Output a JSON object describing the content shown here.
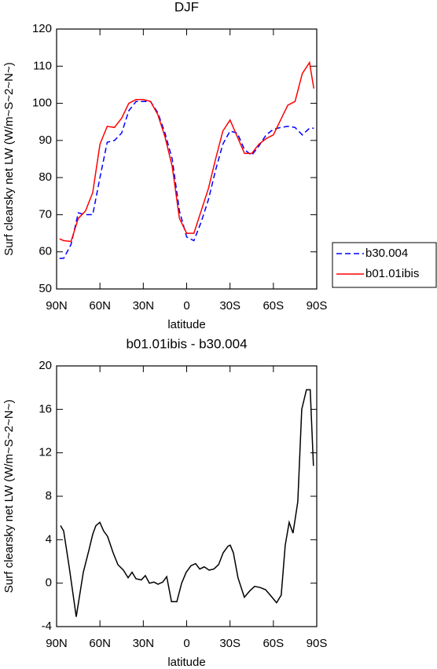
{
  "chart_data": [
    {
      "type": "line",
      "title": "DJF",
      "xlabel": "latitude",
      "ylabel": "Surf clearsky net LW (W/m~S~2~N~)",
      "x": [
        88,
        85,
        80,
        75,
        70,
        65,
        60,
        55,
        50,
        45,
        40,
        35,
        30,
        25,
        20,
        15,
        10,
        5,
        0,
        -5,
        -10,
        -15,
        -20,
        -25,
        -30,
        -35,
        -40,
        -45,
        -50,
        -55,
        -60,
        -65,
        -70,
        -75,
        -80,
        -85,
        -88
      ],
      "series": [
        {
          "name": "b30.004",
          "color": "#0000ff",
          "dash": "dashed",
          "values": [
            58.2,
            58.3,
            62,
            70.5,
            70,
            70,
            80,
            89.5,
            90,
            92,
            98,
            100.5,
            100.5,
            100.5,
            97.5,
            92,
            85,
            71,
            64,
            63,
            68,
            74,
            82,
            89,
            92.5,
            92,
            87.5,
            86,
            88.5,
            91.5,
            93,
            93.5,
            93.8,
            93.5,
            91.5,
            93.3,
            93.3
          ]
        },
        {
          "name": "b01.01ibis",
          "color": "#ff0000",
          "dash": "solid",
          "values": [
            63.5,
            63,
            62.8,
            69,
            71,
            76,
            89,
            93.8,
            93.5,
            96,
            100,
            101,
            101,
            100.5,
            97,
            91,
            83,
            69,
            65,
            65,
            71,
            77,
            85,
            92.5,
            95.5,
            91,
            86.5,
            86.5,
            89,
            90.5,
            91.5,
            95.5,
            99.5,
            100.5,
            108,
            111,
            104
          ]
        }
      ],
      "xlim": [
        90,
        -90
      ],
      "xticks": [
        {
          "value": 90,
          "label": "90N"
        },
        {
          "value": 60,
          "label": "60N"
        },
        {
          "value": 30,
          "label": "30N"
        },
        0,
        {
          "value": -30,
          "label": "30S"
        },
        {
          "value": -60,
          "label": "60S"
        },
        {
          "value": -90,
          "label": "90S"
        }
      ],
      "ylim": [
        50,
        120
      ],
      "yticks": [
        50,
        60,
        70,
        80,
        90,
        100,
        110,
        120
      ],
      "legend": "right"
    },
    {
      "type": "line",
      "title": "b01.01ibis - b30.004",
      "xlabel": "latitude",
      "ylabel": "Surf clearsky net LW (W/m~S~2~N~)",
      "x": [
        87.3,
        85.1,
        81.3,
        76.4,
        71.5,
        67.7,
        65.0,
        62.8,
        60.1,
        57.4,
        54.7,
        50.9,
        47.6,
        43.8,
        40.5,
        37.8,
        35.1,
        31.3,
        28.6,
        25.8,
        22.6,
        19.8,
        16.6,
        13.8,
        10.5,
        6.8,
        3.5,
        0.3,
        -3.0,
        -6.2,
        -9.0,
        -12.2,
        -15.5,
        -18.8,
        -22.1,
        -25.3,
        -28.6,
        -30.1,
        -32.3,
        -35.5,
        -39.9,
        -43.7,
        -47.0,
        -50.8,
        -54.6,
        -57.8,
        -62.2,
        -65.4,
        -68.2,
        -70.9,
        -73.6,
        -76.9,
        -79.6,
        -82.9,
        -85.5,
        -87.7
      ],
      "color": "#000000",
      "values": [
        5.3,
        4.8,
        1.5,
        -3.1,
        1,
        3,
        4.5,
        5.3,
        5.6,
        4.8,
        4.3,
        2.8,
        1.7,
        1.2,
        0.5,
        1,
        0.4,
        0.3,
        0.7,
        0,
        0.1,
        -0.1,
        0.1,
        0.6,
        -1.7,
        -1.7,
        0,
        1,
        1.6,
        1.8,
        1.3,
        1.5,
        1.2,
        1.3,
        1.7,
        2.8,
        3.4,
        3.5,
        2.8,
        0.5,
        -1.3,
        -0.7,
        -0.3,
        -0.4,
        -0.6,
        -1.1,
        -1.8,
        -1.1,
        3.5,
        5.6,
        4.6,
        7.5,
        16,
        17.8,
        17.8,
        10.8
      ],
      "xlim": [
        90,
        -90
      ],
      "xticks": [
        {
          "value": 90,
          "label": "90N"
        },
        {
          "value": 60,
          "label": "60N"
        },
        {
          "value": 30,
          "label": "30N"
        },
        0,
        {
          "value": -30,
          "label": "30S"
        },
        {
          "value": -60,
          "label": "60S"
        },
        {
          "value": -90,
          "label": "90S"
        }
      ],
      "ylim": [
        -4,
        20
      ],
      "yticks": [
        -4,
        0,
        4,
        8,
        12,
        16,
        20
      ]
    }
  ]
}
